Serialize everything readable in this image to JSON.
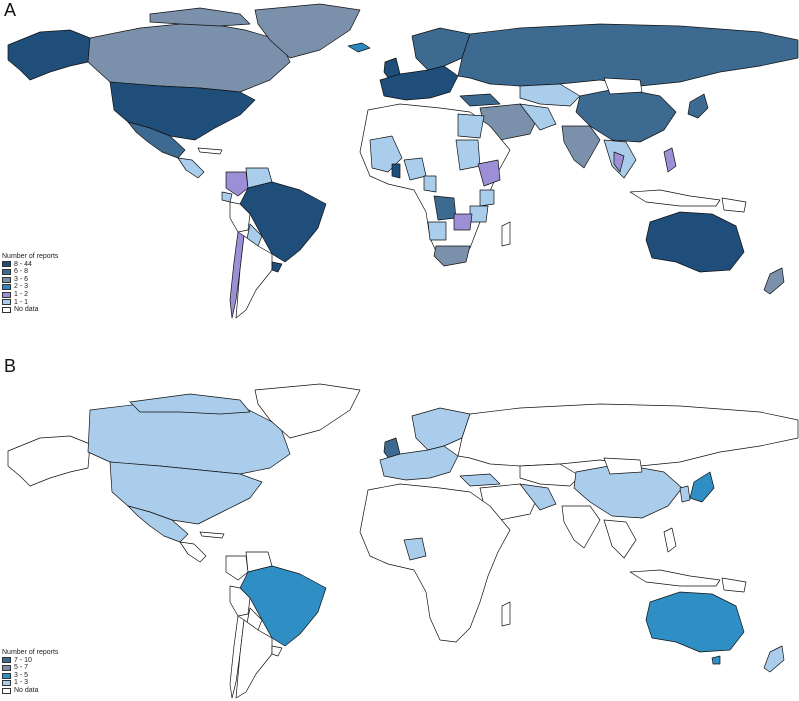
{
  "panels": [
    {
      "label": "A",
      "legend": {
        "title": "Number of reports",
        "entries": [
          {
            "label": "8 - 44",
            "color": "#1f4e7a"
          },
          {
            "label": "6 - 8",
            "color": "#3d6a90"
          },
          {
            "label": "3 - 6",
            "color": "#7a90ab"
          },
          {
            "label": "2 - 3",
            "color": "#2f87bf"
          },
          {
            "label": "1 - 2",
            "color": "#9c8fd6"
          },
          {
            "label": "1 - 1",
            "color": "#a9cdeb"
          },
          {
            "label": "No data",
            "color": "#ffffff"
          }
        ]
      }
    },
    {
      "label": "B",
      "legend": {
        "title": "Number of reports",
        "entries": [
          {
            "label": "7 - 10",
            "color": "#3d6a90"
          },
          {
            "label": "5 - 7",
            "color": "#7a90ab"
          },
          {
            "label": "3 - 5",
            "color": "#2f8fc4"
          },
          {
            "label": "1 - 3",
            "color": "#a9cdeb"
          },
          {
            "label": "No data",
            "color": "#ffffff"
          }
        ]
      }
    }
  ]
}
